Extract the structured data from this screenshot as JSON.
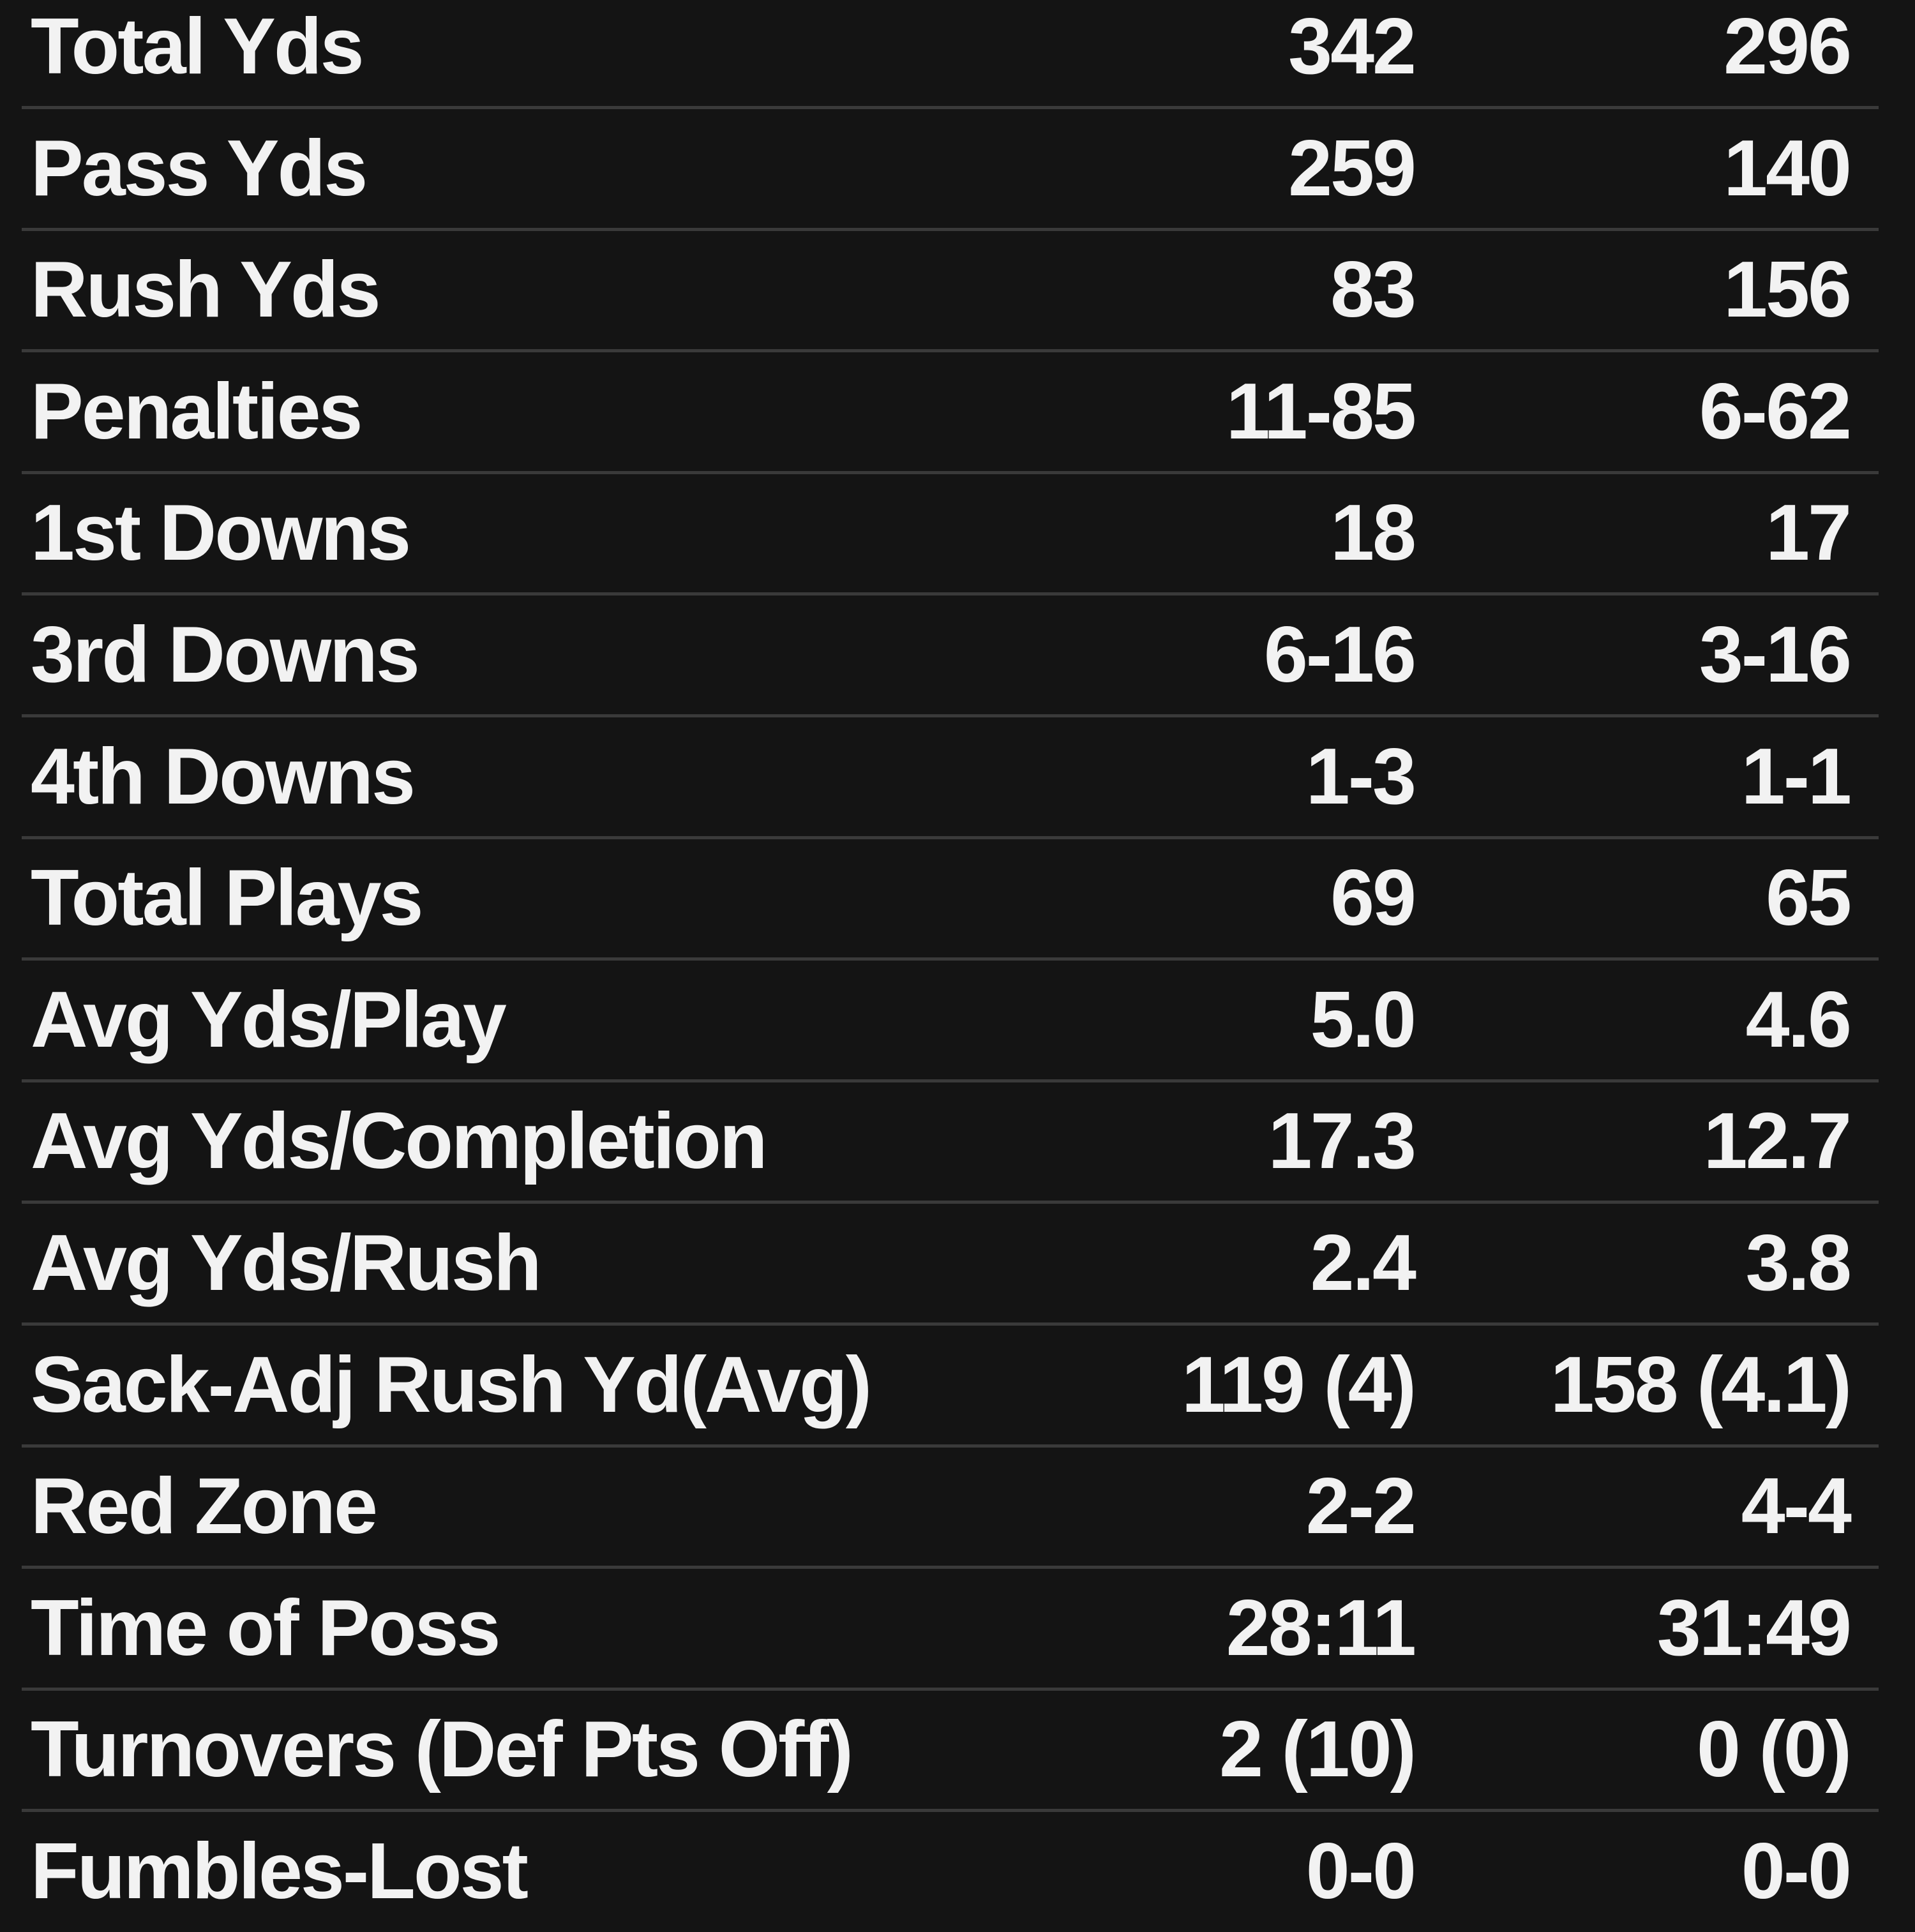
{
  "table": {
    "rows": [
      [
        "Total Yds",
        "342",
        "296"
      ],
      [
        "Pass Yds",
        "259",
        "140"
      ],
      [
        "Rush Yds",
        "83",
        "156"
      ],
      [
        "Penalties",
        "11-85",
        "6-62"
      ],
      [
        "1st Downs",
        "18",
        "17"
      ],
      [
        "3rd Downs",
        "6-16",
        "3-16"
      ],
      [
        "4th Downs",
        "1-3",
        "1-1"
      ],
      [
        "Total Plays",
        "69",
        "65"
      ],
      [
        "Avg Yds/Play",
        "5.0",
        "4.6"
      ],
      [
        "Avg Yds/Completion",
        "17.3",
        "12.7"
      ],
      [
        "Avg Yds/Rush",
        "2.4",
        "3.8"
      ],
      [
        "Sack-Adj Rush Yd(Avg)",
        "119 (4)",
        "158 (4.1)"
      ],
      [
        "Red Zone",
        "2-2",
        "4-4"
      ],
      [
        "Time of Poss",
        "28:11",
        "31:49"
      ],
      [
        "Turnovers (Def Pts Off)",
        "2 (10)",
        "0 (0)"
      ],
      [
        "Fumbles-Lost",
        "0-0",
        "0-0"
      ]
    ]
  }
}
